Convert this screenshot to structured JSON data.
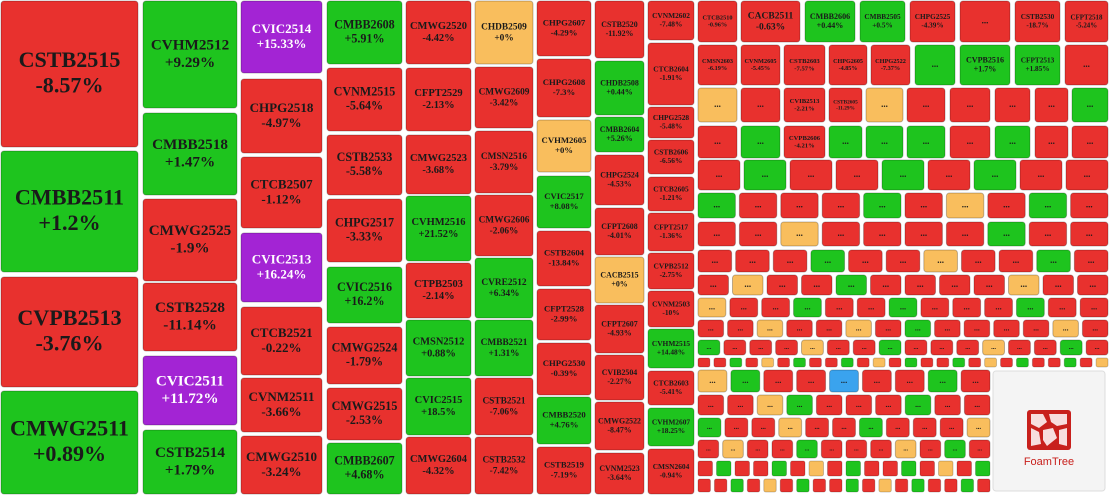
{
  "type": "treemap",
  "logo": "FoamTree",
  "tiles": [
    {
      "label": "CSTB2515",
      "change": "-8.57%",
      "color": "#e8312e"
    },
    {
      "label": "CMBB2511",
      "change": "+1.2%",
      "color": "#1ec41e"
    },
    {
      "label": "CVPB2513",
      "change": "-3.76%",
      "color": "#e8312e"
    },
    {
      "label": "CMWG2511",
      "change": "+0.89%",
      "color": "#1ec41e"
    },
    {
      "label": "CVHM2512",
      "change": "+9.29%",
      "color": "#1ec41e"
    },
    {
      "label": "CMBB2518",
      "change": "+1.47%",
      "color": "#1ec41e"
    },
    {
      "label": "CMWG2525",
      "change": "-1.9%",
      "color": "#e8312e"
    },
    {
      "label": "CSTB2528",
      "change": "-11.14%",
      "color": "#e8312e"
    },
    {
      "label": "CVIC2511",
      "change": "+11.72%",
      "color": "#a324d4"
    },
    {
      "label": "CSTB2514",
      "change": "+1.79%",
      "color": "#1ec41e"
    },
    {
      "label": "CVIC2514",
      "change": "+15.33%",
      "color": "#a324d4"
    },
    {
      "label": "CHPG2518",
      "change": "-4.97%",
      "color": "#e8312e"
    },
    {
      "label": "CTCB2507",
      "change": "-1.12%",
      "color": "#e8312e"
    },
    {
      "label": "CVIC2513",
      "change": "+16.24%",
      "color": "#a324d4"
    },
    {
      "label": "CTCB2521",
      "change": "-0.22%",
      "color": "#e8312e"
    },
    {
      "label": "CVNM2511",
      "change": "-3.66%",
      "color": "#e8312e"
    },
    {
      "label": "CMWG2510",
      "change": "-3.24%",
      "color": "#e8312e"
    },
    {
      "label": "CMBB2608",
      "change": "+5.91%",
      "color": "#1ec41e"
    },
    {
      "label": "CVNM2515",
      "change": "-5.64%",
      "color": "#e8312e"
    },
    {
      "label": "CSTB2533",
      "change": "-5.58%",
      "color": "#e8312e"
    },
    {
      "label": "CHPG2517",
      "change": "-3.33%",
      "color": "#e8312e"
    },
    {
      "label": "CVIC2516",
      "change": "+16.2%",
      "color": "#1ec41e"
    },
    {
      "label": "CMWG2524",
      "change": "-1.79%",
      "color": "#e8312e"
    },
    {
      "label": "CMWG2515",
      "change": "-2.53%",
      "color": "#e8312e"
    },
    {
      "label": "CMBB2607",
      "change": "+4.68%",
      "color": "#1ec41e"
    },
    {
      "label": "CMWG2520",
      "change": "-4.42%",
      "color": "#e8312e"
    },
    {
      "label": "CFPT2529",
      "change": "-2.13%",
      "color": "#e8312e"
    },
    {
      "label": "CMWG2523",
      "change": "-3.68%",
      "color": "#e8312e"
    },
    {
      "label": "CVHM2516",
      "change": "+21.52%",
      "color": "#1ec41e"
    },
    {
      "label": "CTPB2503",
      "change": "-2.14%",
      "color": "#e8312e"
    },
    {
      "label": "CMSN2512",
      "change": "+0.88%",
      "color": "#1ec41e"
    },
    {
      "label": "CVIC2515",
      "change": "+18.5%",
      "color": "#1ec41e"
    },
    {
      "label": "CMWG2604",
      "change": "-4.32%",
      "color": "#e8312e"
    },
    {
      "label": "CHDB2509",
      "change": "+0%",
      "color": "#f9be5d"
    },
    {
      "label": "CMWG2609",
      "change": "-3.42%",
      "color": "#e8312e"
    },
    {
      "label": "CMSN2516",
      "change": "-3.79%",
      "color": "#e8312e"
    },
    {
      "label": "CMWG2606",
      "change": "-2.06%",
      "color": "#e8312e"
    },
    {
      "label": "CVRE2512",
      "change": "+6.34%",
      "color": "#1ec41e"
    },
    {
      "label": "CMBB2521",
      "change": "+1.31%",
      "color": "#1ec41e"
    },
    {
      "label": "CSTB2521",
      "change": "-7.06%",
      "color": "#e8312e"
    },
    {
      "label": "CSTB2532",
      "change": "-7.42%",
      "color": "#e8312e"
    },
    {
      "label": "CHPG2607",
      "change": "-4.29%",
      "color": "#e8312e"
    },
    {
      "label": "CHPG2608",
      "change": "-7.3%",
      "color": "#e8312e"
    },
    {
      "label": "CVHM2605",
      "change": "+0%",
      "color": "#f9be5d"
    },
    {
      "label": "CVIC2517",
      "change": "+8.08%",
      "color": "#1ec41e"
    },
    {
      "label": "CSTB2604",
      "change": "-13.84%",
      "color": "#e8312e"
    },
    {
      "label": "CFPT2528",
      "change": "-2.99%",
      "color": "#e8312e"
    },
    {
      "label": "CHPG2530",
      "change": "-0.39%",
      "color": "#e8312e"
    },
    {
      "label": "CMBB2520",
      "change": "+4.76%",
      "color": "#1ec41e"
    },
    {
      "label": "CSTB2519",
      "change": "-7.19%",
      "color": "#e8312e"
    },
    {
      "label": "CSTB2520",
      "change": "-11.92%",
      "color": "#e8312e"
    },
    {
      "label": "CHDB2508",
      "change": "+0.44%",
      "color": "#1ec41e"
    },
    {
      "label": "CMBB2604",
      "change": "+5.26%",
      "color": "#1ec41e"
    },
    {
      "label": "CHPG2524",
      "change": "-4.53%",
      "color": "#e8312e"
    },
    {
      "label": "CFPT2608",
      "change": "-4.01%",
      "color": "#e8312e"
    },
    {
      "label": "CACB2515",
      "change": "+0%",
      "color": "#f9be5d"
    },
    {
      "label": "CFPT2607",
      "change": "-4.93%",
      "color": "#e8312e"
    },
    {
      "label": "CVIB2504",
      "change": "-2.27%",
      "color": "#e8312e"
    },
    {
      "label": "CMWG2522",
      "change": "-8.47%",
      "color": "#e8312e"
    },
    {
      "label": "CVNM2523",
      "change": "-3.64%",
      "color": "#e8312e"
    },
    {
      "label": "CVNM2602",
      "change": "-7.48%",
      "color": "#e8312e"
    },
    {
      "label": "CTCB2604",
      "change": "-1.91%",
      "color": "#e8312e"
    },
    {
      "label": "CHPG2528",
      "change": "-5.48%",
      "color": "#e8312e"
    },
    {
      "label": "CSTB2606",
      "change": "-6.56%",
      "color": "#e8312e"
    },
    {
      "label": "CTCB2605",
      "change": "-1.21%",
      "color": "#e8312e"
    },
    {
      "label": "CFPT2517",
      "change": "-1.36%",
      "color": "#e8312e"
    },
    {
      "label": "CVPB2512",
      "change": "-2.75%",
      "color": "#e8312e"
    },
    {
      "label": "CVNM2503",
      "change": "-10%",
      "color": "#e8312e"
    },
    {
      "label": "CVHM2515",
      "change": "+14.48%",
      "color": "#1ec41e"
    },
    {
      "label": "CTCB2603",
      "change": "-5.41%",
      "color": "#e8312e"
    },
    {
      "label": "CVHM2607",
      "change": "+18.25%",
      "color": "#1ec41e"
    },
    {
      "label": "CMSN2604",
      "change": "-0.94%",
      "color": "#e8312e"
    },
    {
      "label": "CTCB2510",
      "change": "-0.96%",
      "color": "#e8312e"
    },
    {
      "label": "CACB2511",
      "change": "-0.63%",
      "color": "#e8312e"
    },
    {
      "label": "CMBB2606",
      "change": "+0.44%",
      "color": "#1ec41e"
    },
    {
      "label": "CMBB2505",
      "change": "+0.5%",
      "color": "#1ec41e"
    },
    {
      "label": "CHPG2525",
      "change": "-4.39%",
      "color": "#e8312e"
    },
    {
      "label": "...",
      "color": "#e8312e"
    },
    {
      "label": "CSTB2530",
      "change": "-18.7%",
      "color": "#e8312e"
    },
    {
      "label": "CFPT2518",
      "change": "-5.24%",
      "color": "#e8312e"
    },
    {
      "label": "CMSN2603",
      "change": "-6.19%",
      "color": "#e8312e"
    },
    {
      "label": "CVNM2605",
      "change": "-5.45%",
      "color": "#e8312e"
    },
    {
      "label": "CSTB2603",
      "change": "-7.57%",
      "color": "#e8312e"
    },
    {
      "label": "CHPG2605",
      "change": "-4.85%",
      "color": "#e8312e"
    },
    {
      "label": "CHPG2522",
      "change": "-7.37%",
      "color": "#e8312e"
    },
    {
      "label": "...",
      "color": "#1ec41e"
    },
    {
      "label": "CVPB2516",
      "change": "+1.7%",
      "color": "#1ec41e"
    },
    {
      "label": "CFPT2513",
      "change": "+1.85%",
      "color": "#1ec41e"
    },
    {
      "label": "...",
      "color": "#e8312e"
    },
    {
      "label": "...",
      "color": "#f9be5d"
    },
    {
      "label": "...",
      "color": "#e8312e"
    },
    {
      "label": "CVIB2513",
      "change": "-2.21%",
      "color": "#e8312e"
    },
    {
      "label": "CSTB2605",
      "change": "-11.29%",
      "color": "#e8312e"
    },
    {
      "label": "...",
      "color": "#f9be5d"
    },
    {
      "label": "...",
      "color": "#e8312e"
    },
    {
      "label": "...",
      "color": "#e8312e"
    },
    {
      "label": "...",
      "color": "#e8312e"
    },
    {
      "label": "...",
      "color": "#e8312e"
    },
    {
      "label": "...",
      "color": "#1ec41e"
    },
    {
      "label": "...",
      "color": "#e8312e"
    },
    {
      "label": "...",
      "color": "#1ec41e"
    },
    {
      "label": "CVPB2606",
      "change": "-4.21%",
      "color": "#e8312e"
    },
    {
      "label": "...",
      "color": "#1ec41e"
    },
    {
      "label": "...",
      "color": "#1ec41e"
    },
    {
      "label": "...",
      "color": "#1ec41e"
    },
    {
      "label": "...",
      "color": "#e8312e"
    },
    {
      "label": "...",
      "color": "#1ec41e"
    },
    {
      "label": "...",
      "color": "#e8312e"
    },
    {
      "label": "...",
      "color": "#e8312e"
    },
    {
      "label": "...",
      "color": "#e8312e"
    },
    {
      "label": "...",
      "color": "#1ec41e"
    },
    {
      "label": "...",
      "color": "#e8312e"
    },
    {
      "label": "...",
      "color": "#e8312e"
    },
    {
      "label": "...",
      "color": "#1ec41e"
    },
    {
      "label": "...",
      "color": "#e8312e"
    },
    {
      "label": "...",
      "color": "#1ec41e"
    },
    {
      "label": "...",
      "color": "#e8312e"
    },
    {
      "label": "...",
      "color": "#e8312e"
    },
    {
      "label": "...",
      "color": "#1ec41e"
    },
    {
      "label": "...",
      "color": "#e8312e"
    },
    {
      "label": "...",
      "color": "#e8312e"
    },
    {
      "label": "...",
      "color": "#e8312e"
    },
    {
      "label": "...",
      "color": "#1ec41e"
    },
    {
      "label": "...",
      "color": "#e8312e"
    },
    {
      "label": "...",
      "color": "#f9be5d"
    },
    {
      "label": "...",
      "color": "#e8312e"
    },
    {
      "label": "...",
      "color": "#1ec41e"
    },
    {
      "label": "...",
      "color": "#e8312e"
    },
    {
      "label": "...",
      "color": "#e8312e"
    },
    {
      "label": "...",
      "color": "#e8312e"
    },
    {
      "label": "...",
      "color": "#f9be5d"
    },
    {
      "label": "...",
      "color": "#e8312e"
    },
    {
      "label": "...",
      "color": "#e8312e"
    },
    {
      "label": "...",
      "color": "#e8312e"
    },
    {
      "label": "...",
      "color": "#e8312e"
    },
    {
      "label": "...",
      "color": "#1ec41e"
    },
    {
      "label": "...",
      "color": "#e8312e"
    },
    {
      "label": "...",
      "color": "#e8312e"
    },
    {
      "label": "...",
      "color": "#e8312e"
    },
    {
      "label": "...",
      "color": "#e8312e"
    },
    {
      "label": "...",
      "color": "#e8312e"
    },
    {
      "label": "...",
      "color": "#1ec41e"
    },
    {
      "label": "...",
      "color": "#e8312e"
    },
    {
      "label": "...",
      "color": "#e8312e"
    },
    {
      "label": "...",
      "color": "#f9be5d"
    },
    {
      "label": "...",
      "color": "#e8312e"
    },
    {
      "label": "...",
      "color": "#e8312e"
    },
    {
      "label": "...",
      "color": "#1ec41e"
    },
    {
      "label": "...",
      "color": "#e8312e"
    },
    {
      "label": "...",
      "color": "#e8312e"
    },
    {
      "label": "...",
      "color": "#f9be5d"
    },
    {
      "label": "...",
      "color": "#e8312e"
    },
    {
      "label": "...",
      "color": "#e8312e"
    },
    {
      "label": "...",
      "color": "#1ec41e"
    },
    {
      "label": "...",
      "color": "#e8312e"
    },
    {
      "label": "...",
      "color": "#e8312e"
    },
    {
      "label": "...",
      "color": "#e8312e"
    },
    {
      "label": "...",
      "color": "#e8312e"
    },
    {
      "label": "...",
      "color": "#f9be5d"
    },
    {
      "label": "...",
      "color": "#e8312e"
    },
    {
      "label": "...",
      "color": "#e8312e"
    },
    {
      "label": "...",
      "color": "#f9be5d"
    },
    {
      "label": "...",
      "color": "#e8312e"
    },
    {
      "label": "...",
      "color": "#e8312e"
    },
    {
      "label": "...",
      "color": "#1ec41e"
    },
    {
      "label": "...",
      "color": "#e8312e"
    },
    {
      "label": "...",
      "color": "#e8312e"
    },
    {
      "label": "...",
      "color": "#1ec41e"
    },
    {
      "label": "...",
      "color": "#e8312e"
    },
    {
      "label": "...",
      "color": "#e8312e"
    },
    {
      "label": "...",
      "color": "#e8312e"
    },
    {
      "label": "...",
      "color": "#1ec41e"
    },
    {
      "label": "...",
      "color": "#e8312e"
    },
    {
      "label": "...",
      "color": "#e8312e"
    },
    {
      "label": "...",
      "color": "#e8312e"
    },
    {
      "label": "...",
      "color": "#e8312e"
    },
    {
      "label": "...",
      "color": "#f9be5d"
    },
    {
      "label": "...",
      "color": "#e8312e"
    },
    {
      "label": "...",
      "color": "#e8312e"
    },
    {
      "label": "...",
      "color": "#f9be5d"
    },
    {
      "label": "...",
      "color": "#e8312e"
    },
    {
      "label": "...",
      "color": "#1ec41e"
    },
    {
      "label": "...",
      "color": "#e8312e"
    },
    {
      "label": "...",
      "color": "#e8312e"
    },
    {
      "label": "...",
      "color": "#e8312e"
    },
    {
      "label": "...",
      "color": "#e8312e"
    },
    {
      "label": "...",
      "color": "#f9be5d"
    },
    {
      "label": "...",
      "color": "#e8312e"
    },
    {
      "label": "...",
      "color": "#1ec41e"
    },
    {
      "label": "...",
      "color": "#e8312e"
    },
    {
      "label": "...",
      "color": "#e8312e"
    },
    {
      "label": "...",
      "color": "#e8312e"
    },
    {
      "label": "...",
      "color": "#f9be5d"
    },
    {
      "label": "...",
      "color": "#e8312e"
    },
    {
      "label": "...",
      "color": "#e8312e"
    },
    {
      "label": "...",
      "color": "#1ec41e"
    },
    {
      "label": "...",
      "color": "#e8312e"
    },
    {
      "label": "...",
      "color": "#e8312e"
    },
    {
      "label": "...",
      "color": "#e8312e"
    },
    {
      "label": "...",
      "color": "#f9be5d"
    },
    {
      "label": "...",
      "color": "#e8312e"
    },
    {
      "label": "...",
      "color": "#e8312e"
    },
    {
      "label": "...",
      "color": "#1ec41e"
    },
    {
      "label": "...",
      "color": "#e8312e"
    },
    {
      "label": "...",
      "color": "#f9be5d"
    },
    {
      "label": "...",
      "color": "#1ec41e"
    },
    {
      "label": "...",
      "color": "#e8312e"
    },
    {
      "label": "...",
      "color": "#e8312e"
    },
    {
      "label": "...",
      "color": "#3aa3ee"
    },
    {
      "label": "...",
      "color": "#e8312e"
    },
    {
      "label": "...",
      "color": "#e8312e"
    },
    {
      "label": "...",
      "color": "#1ec41e"
    },
    {
      "label": "...",
      "color": "#e8312e"
    },
    {
      "label": "...",
      "color": "#e8312e"
    },
    {
      "label": "...",
      "color": "#e8312e"
    },
    {
      "label": "...",
      "color": "#f9be5d"
    },
    {
      "label": "...",
      "color": "#1ec41e"
    },
    {
      "label": "...",
      "color": "#e8312e"
    },
    {
      "label": "...",
      "color": "#e8312e"
    },
    {
      "label": "...",
      "color": "#e8312e"
    },
    {
      "label": "...",
      "color": "#1ec41e"
    },
    {
      "label": "...",
      "color": "#e8312e"
    },
    {
      "label": "...",
      "color": "#e8312e"
    },
    {
      "label": "...",
      "color": "#1ec41e"
    },
    {
      "label": "...",
      "color": "#e8312e"
    },
    {
      "label": "...",
      "color": "#e8312e"
    },
    {
      "label": "...",
      "color": "#f9be5d"
    },
    {
      "label": "...",
      "color": "#e8312e"
    },
    {
      "label": "...",
      "color": "#e8312e"
    },
    {
      "label": "...",
      "color": "#1ec41e"
    },
    {
      "label": "...",
      "color": "#e8312e"
    },
    {
      "label": "...",
      "color": "#e8312e"
    },
    {
      "label": "...",
      "color": "#e8312e"
    },
    {
      "label": "...",
      "color": "#f9be5d"
    },
    {
      "label": "...",
      "color": "#e8312e"
    },
    {
      "label": "...",
      "color": "#f9be5d"
    },
    {
      "label": "...",
      "color": "#e8312e"
    },
    {
      "label": "...",
      "color": "#e8312e"
    },
    {
      "label": "...",
      "color": "#1ec41e"
    },
    {
      "label": "...",
      "color": "#e8312e"
    },
    {
      "label": "...",
      "color": "#e8312e"
    },
    {
      "label": "...",
      "color": "#e8312e"
    },
    {
      "label": "...",
      "color": "#f9be5d"
    },
    {
      "label": "...",
      "color": "#e8312e"
    },
    {
      "label": "...",
      "color": "#1ec41e"
    },
    {
      "label": "...",
      "color": "#e8312e"
    }
  ]
}
